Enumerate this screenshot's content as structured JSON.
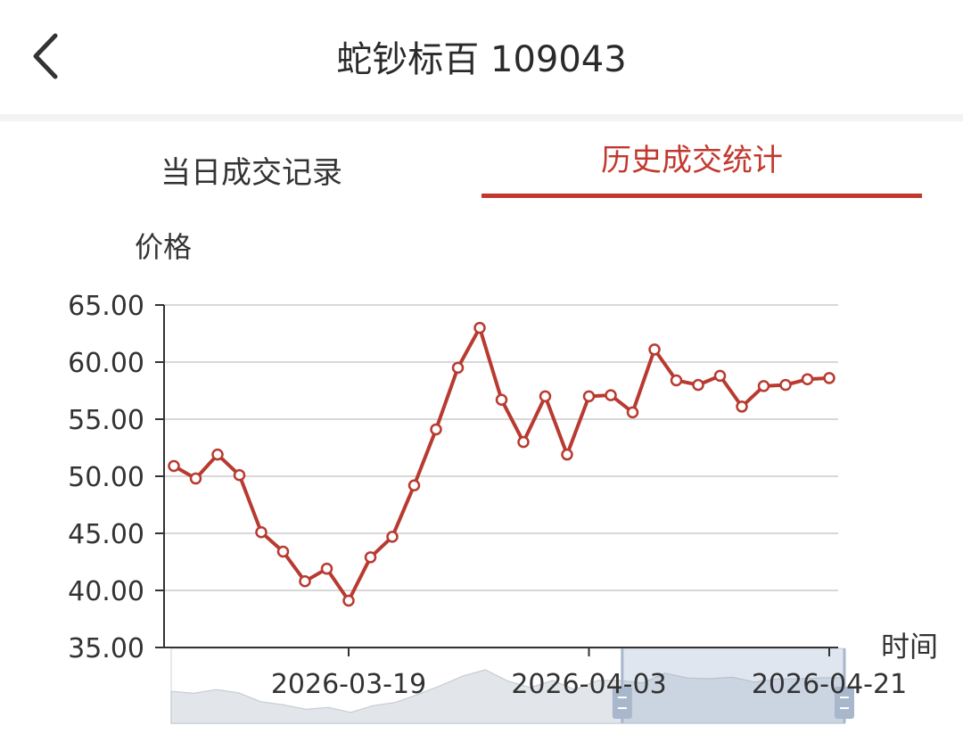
{
  "nav": {
    "back_icon": "chevron-left-icon",
    "title": "蛇钞标百 109043"
  },
  "tabs": [
    {
      "label": "当日成交记录",
      "active": false
    },
    {
      "label": "历史成交统计",
      "active": true
    }
  ],
  "colors": {
    "accent": "#c2382e",
    "line": "#b83a30",
    "grid": "#d8d8d8"
  },
  "chart_data": {
    "type": "line",
    "ylabel": "价格",
    "xlabel": "时间",
    "ylim": [
      35,
      65
    ],
    "yticks": [
      "35.00",
      "40.00",
      "45.00",
      "50.00",
      "55.00",
      "60.00",
      "65.00"
    ],
    "xticks": [
      {
        "label": "2026-03-19",
        "index": 8
      },
      {
        "label": "2026-04-03",
        "index": 19
      },
      {
        "label": "2026-04-21",
        "index": 30
      }
    ],
    "grid": true,
    "series": [
      {
        "values": [
          50.9,
          49.8,
          51.9,
          50.1,
          45.1,
          43.4,
          40.8,
          41.9,
          39.1,
          42.9,
          44.7,
          49.2,
          54.1,
          59.5,
          63.0,
          56.7,
          53.0,
          57.0,
          51.9,
          57.0,
          57.1,
          55.6,
          61.1,
          58.4,
          58.0,
          58.8,
          56.1,
          57.9,
          58.0,
          58.5,
          58.6
        ]
      }
    ],
    "zoom_slider": {
      "start": 0.67,
      "end": 1.0
    }
  }
}
